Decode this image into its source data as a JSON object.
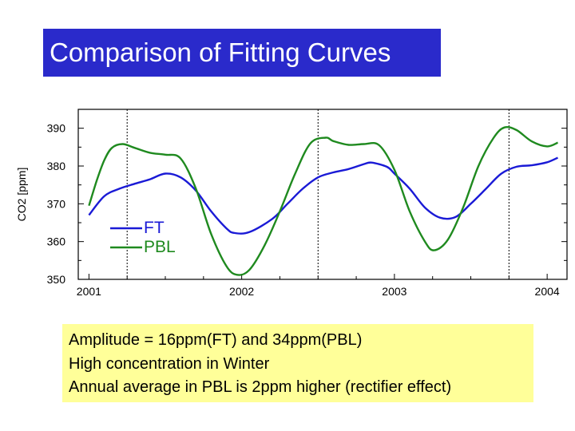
{
  "title": "Comparison of Fitting Curves",
  "chart_data": {
    "type": "line",
    "ylabel": "CO2 [ppm]",
    "xlabel": "",
    "ylim": [
      350,
      395
    ],
    "xlim": [
      2000.93,
      2004.13
    ],
    "yticks": [
      350,
      360,
      370,
      380,
      390
    ],
    "xticks": [
      {
        "value": 2001.0,
        "label": "2001"
      },
      {
        "value": 2002.0,
        "label": "2002"
      },
      {
        "value": 2003.0,
        "label": "2003"
      },
      {
        "value": 2004.0,
        "label": "2004"
      }
    ],
    "vlines": [
      2001.25,
      2002.5,
      2003.75
    ],
    "legend": "left-middle",
    "series": [
      {
        "name": "FT",
        "color": "#1a1ad6",
        "points": [
          [
            2001.0,
            367
          ],
          [
            2001.1,
            372
          ],
          [
            2001.2,
            374
          ],
          [
            2001.3,
            375.3
          ],
          [
            2001.4,
            376.5
          ],
          [
            2001.5,
            378
          ],
          [
            2001.6,
            377
          ],
          [
            2001.7,
            373.5
          ],
          [
            2001.8,
            368
          ],
          [
            2001.9,
            363.5
          ],
          [
            2001.95,
            362.3
          ],
          [
            2002.05,
            362.5
          ],
          [
            2002.2,
            366
          ],
          [
            2002.3,
            370
          ],
          [
            2002.4,
            374
          ],
          [
            2002.5,
            377
          ],
          [
            2002.6,
            378.3
          ],
          [
            2002.7,
            379.2
          ],
          [
            2002.8,
            380.5
          ],
          [
            2002.85,
            380.9
          ],
          [
            2002.95,
            379.8
          ],
          [
            2003.0,
            378
          ],
          [
            2003.1,
            374
          ],
          [
            2003.2,
            369
          ],
          [
            2003.3,
            366.3
          ],
          [
            2003.4,
            366.5
          ],
          [
            2003.5,
            370
          ],
          [
            2003.6,
            374
          ],
          [
            2003.7,
            378
          ],
          [
            2003.8,
            379.8
          ],
          [
            2003.9,
            380.2
          ],
          [
            2004.0,
            381
          ],
          [
            2004.07,
            382.2
          ]
        ]
      },
      {
        "name": "PBL",
        "color": "#1f8a1f",
        "points": [
          [
            2001.0,
            369.5
          ],
          [
            2001.05,
            376
          ],
          [
            2001.1,
            381.5
          ],
          [
            2001.15,
            384.8
          ],
          [
            2001.22,
            385.8
          ],
          [
            2001.3,
            384.8
          ],
          [
            2001.4,
            383.5
          ],
          [
            2001.5,
            383
          ],
          [
            2001.6,
            382
          ],
          [
            2001.7,
            374
          ],
          [
            2001.8,
            362
          ],
          [
            2001.9,
            353.5
          ],
          [
            2001.97,
            351.2
          ],
          [
            2002.05,
            352.5
          ],
          [
            2002.15,
            359
          ],
          [
            2002.25,
            368
          ],
          [
            2002.35,
            378
          ],
          [
            2002.45,
            386
          ],
          [
            2002.55,
            387.5
          ],
          [
            2002.6,
            386.6
          ],
          [
            2002.7,
            385.6
          ],
          [
            2002.8,
            385.8
          ],
          [
            2002.9,
            385.5
          ],
          [
            2003.0,
            379
          ],
          [
            2003.1,
            368
          ],
          [
            2003.2,
            360
          ],
          [
            2003.26,
            357.7
          ],
          [
            2003.35,
            360.5
          ],
          [
            2003.45,
            369
          ],
          [
            2003.55,
            380
          ],
          [
            2003.65,
            387.5
          ],
          [
            2003.72,
            390.2
          ],
          [
            2003.8,
            389.5
          ],
          [
            2003.9,
            386.5
          ],
          [
            2004.0,
            385.2
          ],
          [
            2004.07,
            386.2
          ]
        ]
      }
    ]
  },
  "notes": [
    "Amplitude = 16ppm(FT) and 34ppm(PBL)",
    "High concentration in Winter",
    "Annual average in PBL is 2ppm higher (rectifier effect)"
  ]
}
